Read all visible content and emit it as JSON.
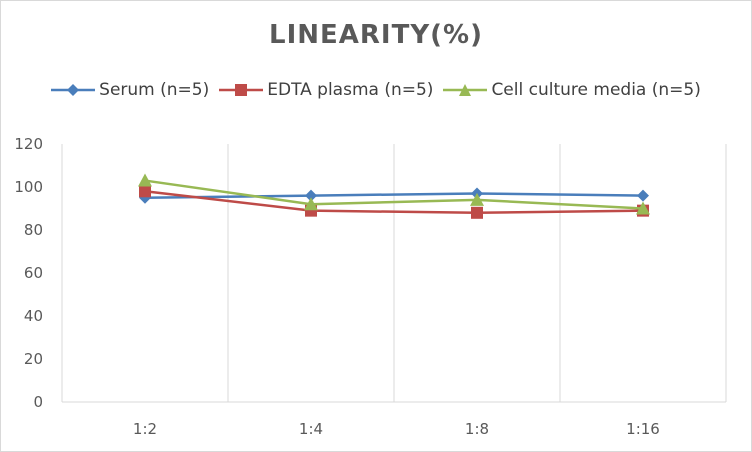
{
  "chart_data": {
    "type": "line",
    "title": "LINEARITY(%)",
    "categories": [
      "1:2",
      "1:4",
      "1:8",
      "1:16"
    ],
    "ylim": [
      0,
      120
    ],
    "yticks": [
      0,
      20,
      40,
      60,
      80,
      100,
      120
    ],
    "grid": "vertical category separators",
    "legend_position": "top",
    "series": [
      {
        "name": "Serum (n=5)",
        "values": [
          95,
          96,
          97,
          96
        ],
        "color": "#4a7ebb",
        "marker": "diamond"
      },
      {
        "name": "EDTA plasma (n=5)",
        "values": [
          98,
          89,
          88,
          89
        ],
        "color": "#be4b48",
        "marker": "square"
      },
      {
        "name": "Cell culture media (n=5)",
        "values": [
          103,
          92,
          94,
          90
        ],
        "color": "#98b954",
        "marker": "triangle"
      }
    ]
  }
}
